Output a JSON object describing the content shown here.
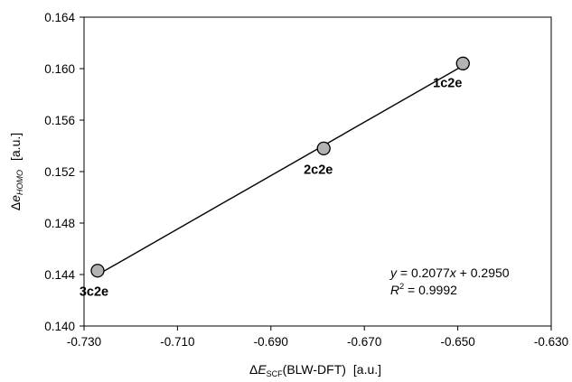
{
  "chart_data": {
    "type": "scatter",
    "title": "",
    "xlabel": {
      "prefix": "Δ",
      "var": "E",
      "sub": "SCF",
      "rest": "(BLW-DFT)",
      "unit": "[a.u.]"
    },
    "ylabel": {
      "prefix": "Δ",
      "var": "e",
      "sub": "HOMO",
      "unit": "[a.u.]"
    },
    "xlim": [
      -0.73,
      -0.63
    ],
    "ylim": [
      0.14,
      0.164
    ],
    "xticks": [
      "-0.730",
      "-0.710",
      "-0.690",
      "-0.670",
      "-0.650",
      "-0.630"
    ],
    "yticks": [
      "0.140",
      "0.144",
      "0.148",
      "0.152",
      "0.156",
      "0.160",
      "0.164"
    ],
    "grid": false,
    "points": [
      {
        "label": "3c2e",
        "x": -0.7271,
        "y": 0.1443
      },
      {
        "label": "2c2e",
        "x": -0.6787,
        "y": 0.1538
      },
      {
        "label": "1c2e",
        "x": -0.6489,
        "y": 0.1604
      }
    ],
    "trendline": {
      "slope": 0.2077,
      "intercept": 0.295
    },
    "equation": {
      "line1": " = 0.2077",
      "var_x": "x",
      "line1_tail": " + 0.2950",
      "var_y": "y",
      "r2_label": "R",
      "r2_exp": "2",
      "r2_value": " = 0.9992"
    },
    "marker_color": "#b3b3b3"
  }
}
